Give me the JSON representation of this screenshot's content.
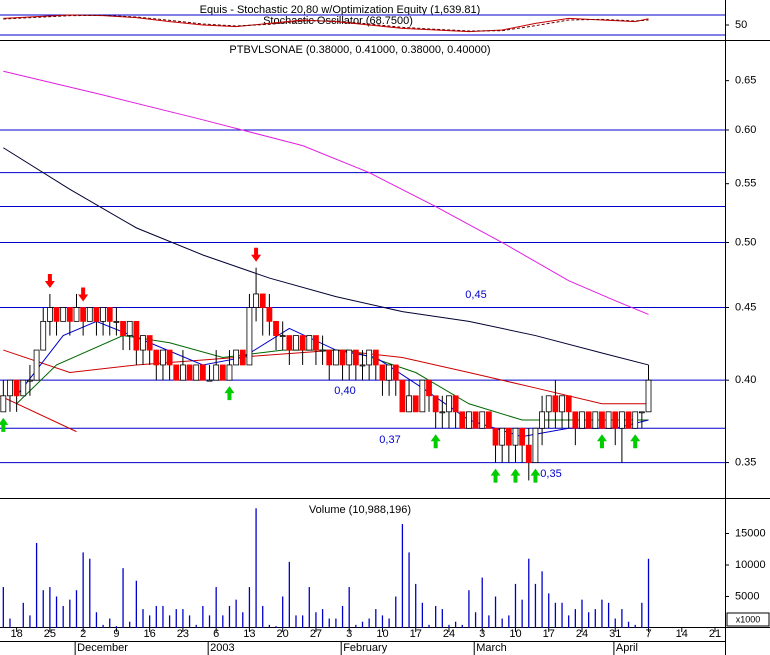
{
  "chart_data": [
    {
      "type": "line",
      "title": "Equis - Stochastic 20,80 w/Optimization Equity (1,639.81)",
      "subtitle": "Stochastic Oscillator (68.7500)",
      "xlim": [
        -0.5,
        108.5
      ],
      "ylim": [
        5,
        116
      ],
      "yticks": [
        50
      ],
      "hlines": [
        20,
        80
      ],
      "hline_color": "#0000cc",
      "series": [
        {
          "color": "#cc0000",
          "dash": false,
          "x": [
            0,
            5,
            10,
            15,
            20,
            25,
            30,
            35,
            40,
            45,
            50,
            55,
            60,
            65,
            70,
            75,
            80,
            85,
            90,
            95,
            97
          ],
          "values": [
            70,
            75,
            80,
            78,
            72,
            60,
            50,
            45,
            55,
            65,
            60,
            50,
            40,
            35,
            30,
            35,
            55,
            70,
            65,
            60,
            68.75
          ]
        },
        {
          "color": "#660000",
          "dash": true,
          "x": [
            0,
            5,
            10,
            15,
            20,
            25,
            30,
            35,
            40,
            45,
            50,
            55,
            60,
            65,
            70,
            75,
            80,
            85,
            90,
            95,
            97
          ],
          "values": [
            68,
            73,
            78,
            79,
            74,
            64,
            53,
            47,
            52,
            62,
            62,
            53,
            43,
            37,
            32,
            33,
            48,
            65,
            67,
            62,
            65
          ]
        }
      ]
    },
    {
      "type": "candlestick",
      "title": "PTBVLSONAE (0.38000, 0.41000, 0.38000, 0.40000)",
      "log_scale": true,
      "xlim": [
        -0.5,
        108.5
      ],
      "ylim": [
        0.331,
        0.692
      ],
      "yticks": [
        0.35,
        {
          "value": 0.4,
          "label": "0.40"
        },
        0.45,
        {
          "value": 0.5,
          "label": "0.50"
        },
        0.55,
        {
          "value": 0.6,
          "label": "0.60"
        },
        0.65
      ],
      "hlines": [
        0.35,
        0.37,
        0.4,
        0.45,
        0.5,
        0.53,
        0.56,
        0.6
      ],
      "hline_color": "#0000cc",
      "up_color": "#ffffff",
      "down_color": "#ff0000",
      "open": [
        0.38,
        0.39,
        0.4,
        0.39,
        0.4,
        0.4,
        0.42,
        0.44,
        0.45,
        0.44,
        0.45,
        0.44,
        0.45,
        0.44,
        0.45,
        0.44,
        0.45,
        0.44,
        0.44,
        0.43,
        0.44,
        0.42,
        0.43,
        0.42,
        0.41,
        0.42,
        0.41,
        0.4,
        0.41,
        0.4,
        0.41,
        0.4,
        0.4,
        0.41,
        0.4,
        0.41,
        0.42,
        0.41,
        0.45,
        0.46,
        0.45,
        0.44,
        0.43,
        0.43,
        0.42,
        0.43,
        0.42,
        0.43,
        0.42,
        0.42,
        0.41,
        0.42,
        0.41,
        0.42,
        0.41,
        0.41,
        0.42,
        0.41,
        0.4,
        0.41,
        0.4,
        0.38,
        0.39,
        0.38,
        0.4,
        0.39,
        0.38,
        0.38,
        0.39,
        0.38,
        0.37,
        0.38,
        0.37,
        0.38,
        0.37,
        0.36,
        0.37,
        0.36,
        0.37,
        0.36,
        0.35,
        0.37,
        0.38,
        0.39,
        0.38,
        0.39,
        0.38,
        0.37,
        0.38,
        0.37,
        0.38,
        0.37,
        0.38,
        0.37,
        0.38,
        0.37,
        0.38,
        0.38
      ],
      "high": [
        0.4,
        0.4,
        0.4,
        0.4,
        0.41,
        0.42,
        0.45,
        0.46,
        0.45,
        0.45,
        0.45,
        0.46,
        0.45,
        0.45,
        0.45,
        0.45,
        0.45,
        0.45,
        0.44,
        0.44,
        0.44,
        0.43,
        0.43,
        0.42,
        0.42,
        0.42,
        0.41,
        0.42,
        0.41,
        0.41,
        0.41,
        0.41,
        0.42,
        0.41,
        0.42,
        0.42,
        0.42,
        0.46,
        0.48,
        0.46,
        0.46,
        0.44,
        0.44,
        0.43,
        0.43,
        0.43,
        0.43,
        0.43,
        0.43,
        0.42,
        0.42,
        0.42,
        0.42,
        0.42,
        0.42,
        0.42,
        0.42,
        0.41,
        0.41,
        0.41,
        0.4,
        0.4,
        0.39,
        0.4,
        0.4,
        0.39,
        0.39,
        0.39,
        0.39,
        0.38,
        0.38,
        0.38,
        0.38,
        0.38,
        0.37,
        0.37,
        0.37,
        0.37,
        0.37,
        0.37,
        0.37,
        0.39,
        0.39,
        0.4,
        0.39,
        0.39,
        0.38,
        0.38,
        0.38,
        0.38,
        0.38,
        0.38,
        0.38,
        0.38,
        0.38,
        0.38,
        0.38,
        0.41
      ],
      "low": [
        0.38,
        0.38,
        0.38,
        0.39,
        0.39,
        0.4,
        0.42,
        0.43,
        0.43,
        0.44,
        0.43,
        0.44,
        0.43,
        0.44,
        0.43,
        0.43,
        0.43,
        0.43,
        0.42,
        0.42,
        0.41,
        0.41,
        0.41,
        0.4,
        0.4,
        0.4,
        0.4,
        0.4,
        0.4,
        0.4,
        0.4,
        0.4,
        0.4,
        0.4,
        0.4,
        0.41,
        0.41,
        0.41,
        0.44,
        0.43,
        0.43,
        0.42,
        0.42,
        0.41,
        0.42,
        0.41,
        0.42,
        0.41,
        0.41,
        0.4,
        0.41,
        0.4,
        0.4,
        0.4,
        0.4,
        0.4,
        0.4,
        0.39,
        0.39,
        0.39,
        0.38,
        0.38,
        0.38,
        0.38,
        0.38,
        0.37,
        0.37,
        0.37,
        0.37,
        0.37,
        0.37,
        0.37,
        0.37,
        0.37,
        0.35,
        0.35,
        0.35,
        0.35,
        0.35,
        0.34,
        0.35,
        0.36,
        0.37,
        0.37,
        0.37,
        0.37,
        0.36,
        0.37,
        0.37,
        0.37,
        0.37,
        0.37,
        0.36,
        0.35,
        0.37,
        0.37,
        0.37,
        0.38
      ],
      "close": [
        0.39,
        0.4,
        0.39,
        0.4,
        0.4,
        0.42,
        0.44,
        0.45,
        0.44,
        0.45,
        0.44,
        0.45,
        0.44,
        0.45,
        0.44,
        0.45,
        0.44,
        0.44,
        0.43,
        0.44,
        0.42,
        0.43,
        0.42,
        0.41,
        0.42,
        0.41,
        0.4,
        0.41,
        0.4,
        0.41,
        0.4,
        0.4,
        0.41,
        0.4,
        0.41,
        0.42,
        0.41,
        0.45,
        0.46,
        0.45,
        0.44,
        0.43,
        0.43,
        0.42,
        0.43,
        0.42,
        0.43,
        0.42,
        0.42,
        0.41,
        0.42,
        0.41,
        0.42,
        0.41,
        0.41,
        0.42,
        0.41,
        0.4,
        0.41,
        0.4,
        0.38,
        0.39,
        0.38,
        0.4,
        0.39,
        0.38,
        0.38,
        0.39,
        0.38,
        0.37,
        0.38,
        0.37,
        0.38,
        0.37,
        0.36,
        0.37,
        0.36,
        0.37,
        0.36,
        0.35,
        0.37,
        0.38,
        0.39,
        0.38,
        0.39,
        0.38,
        0.37,
        0.38,
        0.37,
        0.38,
        0.37,
        0.38,
        0.37,
        0.38,
        0.37,
        0.38,
        0.38,
        0.4
      ],
      "series": [
        {
          "color": "#000033",
          "dash": false,
          "x": [
            0,
            10,
            20,
            30,
            40,
            50,
            60,
            70,
            80,
            90,
            97
          ],
          "values": [
            0.583,
            0.545,
            0.512,
            0.49,
            0.472,
            0.458,
            0.447,
            0.44,
            0.43,
            0.418,
            0.41
          ]
        },
        {
          "color": "#e020e0",
          "dash": false,
          "x": [
            0,
            15,
            30,
            45,
            55,
            65,
            75,
            85,
            92,
            97
          ],
          "values": [
            0.66,
            0.635,
            0.61,
            0.585,
            0.56,
            0.53,
            0.5,
            0.47,
            0.455,
            0.445
          ]
        },
        {
          "color": "#cc0000",
          "dash": false,
          "x": [
            0,
            10,
            20,
            35,
            50,
            60,
            70,
            80,
            90,
            97
          ],
          "values": [
            0.42,
            0.405,
            0.41,
            0.415,
            0.42,
            0.415,
            0.405,
            0.395,
            0.385,
            0.385
          ]
        },
        {
          "color": "#006600",
          "dash": false,
          "x": [
            2,
            8,
            18,
            25,
            33,
            42,
            52,
            62,
            70,
            78,
            88,
            97
          ],
          "values": [
            0.385,
            0.41,
            0.43,
            0.425,
            0.415,
            0.42,
            0.42,
            0.405,
            0.385,
            0.375,
            0.375,
            0.375
          ]
        },
        {
          "color": "#0000cc",
          "dash": false,
          "x": [
            2,
            9,
            14,
            22,
            30,
            36,
            43,
            50,
            56,
            63,
            70,
            78,
            85,
            92,
            97
          ],
          "values": [
            0.39,
            0.43,
            0.44,
            0.425,
            0.41,
            0.415,
            0.435,
            0.42,
            0.415,
            0.395,
            0.375,
            0.365,
            0.37,
            0.37,
            0.375
          ]
        },
        {
          "color": "#cc0000",
          "dash": false,
          "x": [
            -0.5,
            11
          ],
          "values": [
            0.39,
            0.368
          ]
        }
      ],
      "annotations": [
        "0,45",
        "0,40",
        "0,37",
        "0,35"
      ],
      "annotation_color": "#0000cc",
      "buy_signals": [
        0,
        34,
        65,
        74,
        77,
        80,
        90,
        95
      ],
      "buy_color": "#00cc00",
      "sell_signals": [
        7,
        12,
        38
      ],
      "sell_color": "#ff0000"
    },
    {
      "type": "bar",
      "title": "Volume (10,988,196)",
      "unit_label": "x1000",
      "color": "#0000cc",
      "xlim": [
        -0.5,
        108.5
      ],
      "ylim": [
        0,
        20000
      ],
      "yticks": [
        5000,
        10000,
        15000
      ],
      "values": [
        6500,
        1500,
        0,
        4000,
        2000,
        13500,
        6000,
        6500,
        5000,
        3500,
        4500,
        6000,
        12000,
        11000,
        2500,
        500,
        1500,
        300,
        9500,
        1000,
        7500,
        3000,
        2000,
        3500,
        3500,
        2000,
        3000,
        3000,
        2000,
        500,
        3500,
        2000,
        6500,
        2000,
        3500,
        4500,
        2500,
        6500,
        19000,
        3500,
        500,
        300,
        5000,
        10500,
        2000,
        2000,
        6500,
        2500,
        3000,
        1500,
        1500,
        3500,
        6500,
        500,
        1000,
        1500,
        3000,
        2000,
        1500,
        5000,
        16500,
        12000,
        7000,
        4000,
        500,
        3500,
        3000,
        500,
        1000,
        500,
        6000,
        2500,
        8000,
        2000,
        5000,
        1500,
        2000,
        7000,
        4500,
        11000,
        7000,
        9000,
        5500,
        4000,
        4000,
        2000,
        3000,
        4500,
        2500,
        3000,
        4500,
        4000,
        1500,
        3000,
        1000,
        500,
        4000,
        10988
      ],
      "xticks": [
        {
          "value": 2,
          "label": "18"
        },
        {
          "value": 7,
          "label": "25"
        },
        {
          "value": 12,
          "label": "2"
        },
        {
          "value": 17,
          "label": "9"
        },
        {
          "value": 22,
          "label": "16"
        },
        {
          "value": 27,
          "label": "23"
        },
        {
          "value": 32,
          "label": "6"
        },
        {
          "value": 37,
          "label": "13"
        },
        {
          "value": 42,
          "label": "20"
        },
        {
          "value": 47,
          "label": "27"
        },
        {
          "value": 52,
          "label": "3"
        },
        {
          "value": 57,
          "label": "10"
        },
        {
          "value": 62,
          "label": "17"
        },
        {
          "value": 67,
          "label": "24"
        },
        {
          "value": 72,
          "label": "3"
        },
        {
          "value": 77,
          "label": "10"
        },
        {
          "value": 82,
          "label": "17"
        },
        {
          "value": 87,
          "label": "24"
        },
        {
          "value": 92,
          "label": "31"
        },
        {
          "value": 97,
          "label": "7"
        },
        {
          "value": 102,
          "label": "14"
        },
        {
          "value": 107,
          "label": "21"
        }
      ],
      "month_ticks": [
        {
          "value": 12,
          "label": "December"
        },
        {
          "value": 32,
          "label": "2003"
        },
        {
          "value": 52,
          "label": "February"
        },
        {
          "value": 72,
          "label": "March"
        },
        {
          "value": 93,
          "label": "April"
        }
      ]
    }
  ]
}
